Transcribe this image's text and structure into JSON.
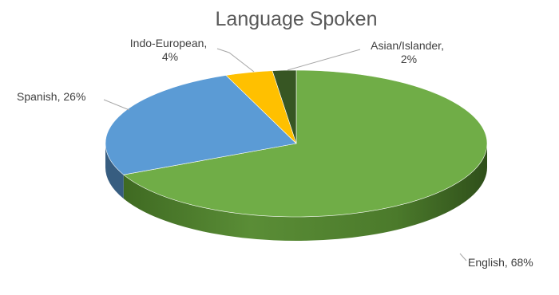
{
  "chart_data": {
    "type": "pie",
    "title": "Language Spoken",
    "style": "3d",
    "slices": [
      {
        "name": "English",
        "value": 68,
        "label_name": "English,",
        "label_value": "68%",
        "color": "#70AD47"
      },
      {
        "name": "Spanish",
        "value": 26,
        "label_name": "Spanish,",
        "label_value": "26%",
        "color": "#5B9BD5"
      },
      {
        "name": "Indo-European",
        "value": 4,
        "label_name": "Indo-European,",
        "label_value": "4%",
        "color": "#FFC000"
      },
      {
        "name": "Asian/Islander",
        "value": 2,
        "label_name": "Asian/Islander,",
        "label_value": "2%",
        "color": "#375623"
      }
    ]
  }
}
